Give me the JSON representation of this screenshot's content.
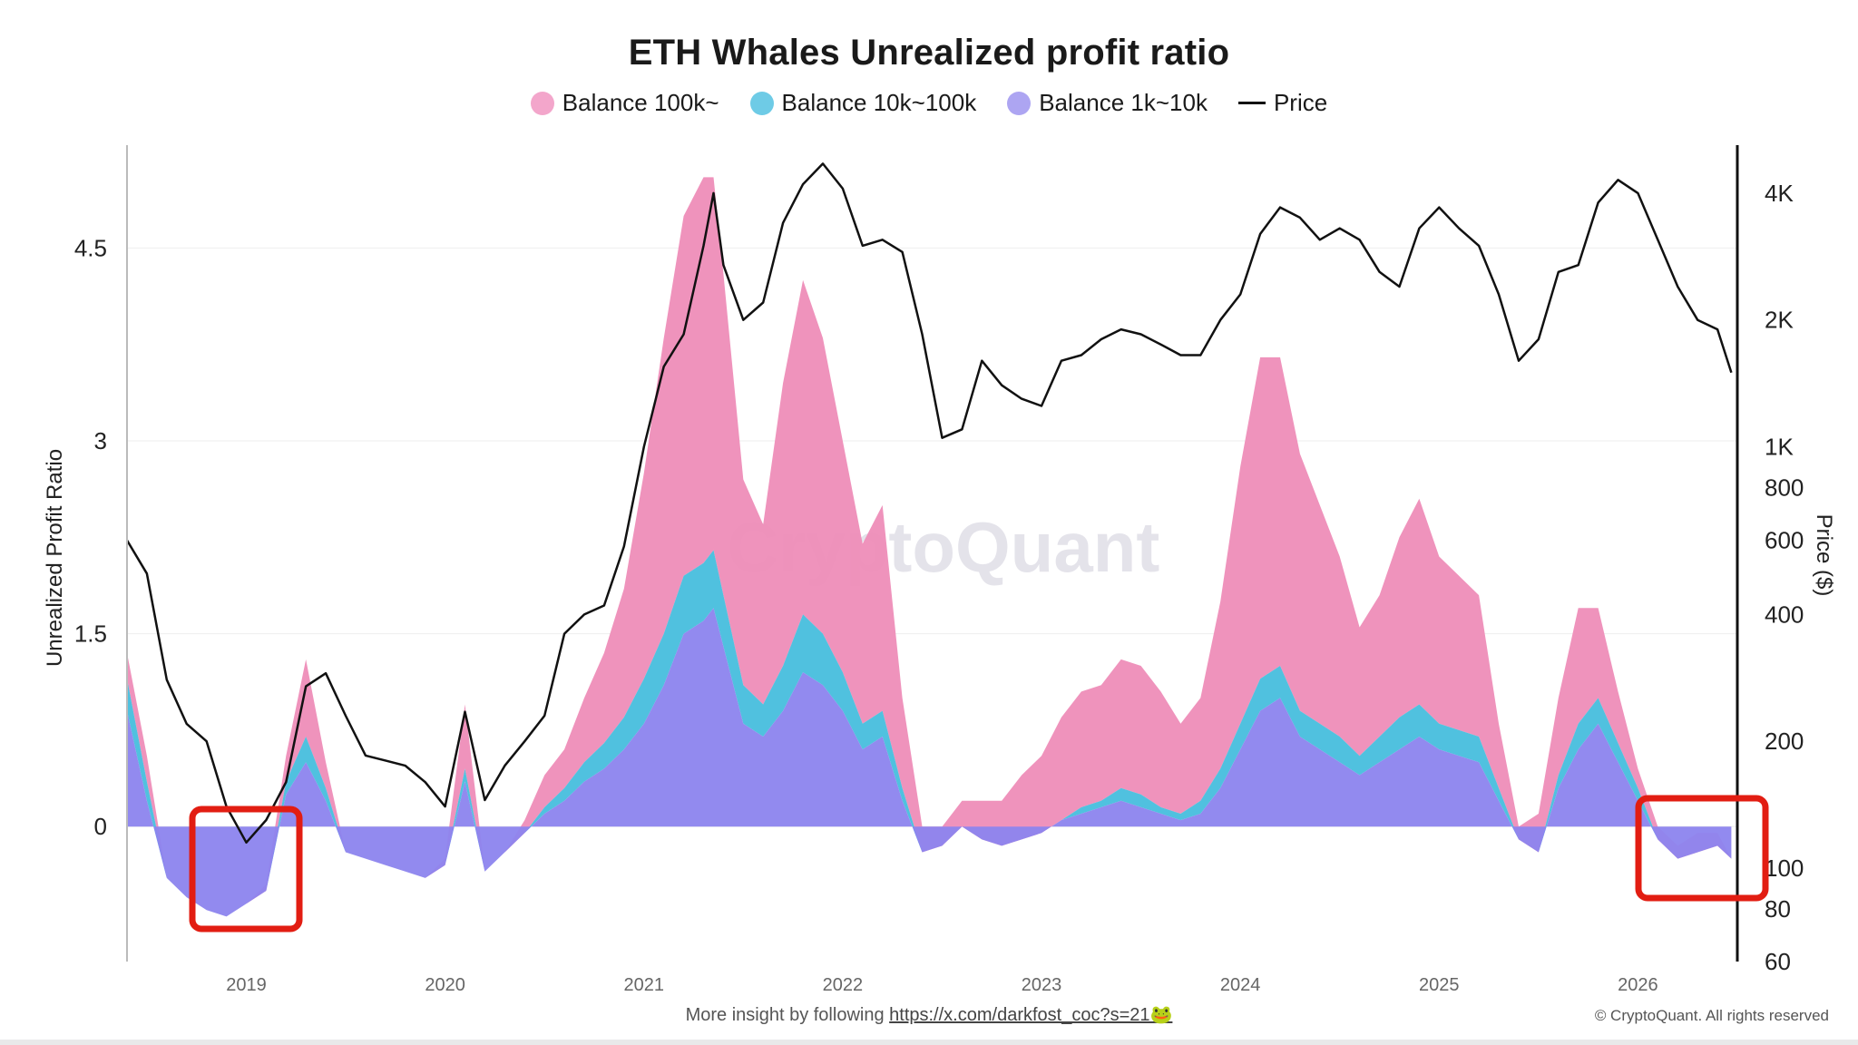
{
  "title": "ETH Whales Unrealized profit ratio",
  "legend": [
    {
      "label": "Balance 100k~",
      "color": "#F095BE",
      "kind": "dot"
    },
    {
      "label": "Balance 10k~100k",
      "color": "#5EC7E3",
      "kind": "dot"
    },
    {
      "label": "Balance 1k~10k",
      "color": "#A99CF2",
      "kind": "dot"
    },
    {
      "label": "Price",
      "color": "#111111",
      "kind": "line"
    }
  ],
  "watermark": "CryptoQuant",
  "footer": {
    "text": "More insight by following",
    "link": "https://x.com/darkfost_coc?s=21🐸",
    "copyright": "© CryptoQuant. All rights reserved"
  },
  "chart_data": {
    "type": "area",
    "title": "ETH Whales Unrealized profit ratio",
    "ylabel": "Unrealized Profit Ratio",
    "y2label": "Price ($)",
    "ylim": [
      -1.05,
      5.3
    ],
    "y_ticks": [
      0,
      1.5,
      3,
      4.5
    ],
    "y_tick_labels": [
      "0",
      "1.5",
      "3",
      "4.5"
    ],
    "y2_scale": "log",
    "y2lim": [
      60,
      5200
    ],
    "y2_ticks": [
      60,
      80,
      100,
      200,
      400,
      600,
      800,
      1000,
      2000,
      4000
    ],
    "y2_tick_labels": [
      "60",
      "80",
      "100",
      "200",
      "400",
      "600",
      "800",
      "1K",
      "2K",
      "4K"
    ],
    "x_range": [
      2018.4,
      2026.5
    ],
    "x_ticks": [
      2019,
      2020,
      2021,
      2022,
      2023,
      2024,
      2025,
      2026
    ],
    "x_tick_labels": [
      "2019",
      "2020",
      "2021",
      "2022",
      "2023",
      "2024",
      "2025",
      "2026"
    ],
    "x": [
      2018.4,
      2018.5,
      2018.6,
      2018.7,
      2018.8,
      2018.9,
      2019.0,
      2019.1,
      2019.2,
      2019.3,
      2019.4,
      2019.5,
      2019.6,
      2019.7,
      2019.8,
      2019.9,
      2020.0,
      2020.1,
      2020.2,
      2020.3,
      2020.4,
      2020.5,
      2020.6,
      2020.7,
      2020.8,
      2020.9,
      2021.0,
      2021.1,
      2021.2,
      2021.3,
      2021.35,
      2021.4,
      2021.5,
      2021.6,
      2021.7,
      2021.8,
      2021.9,
      2022.0,
      2022.1,
      2022.2,
      2022.3,
      2022.4,
      2022.5,
      2022.6,
      2022.7,
      2022.8,
      2022.9,
      2023.0,
      2023.1,
      2023.2,
      2023.3,
      2023.4,
      2023.5,
      2023.6,
      2023.7,
      2023.8,
      2023.9,
      2024.0,
      2024.1,
      2024.2,
      2024.3,
      2024.4,
      2024.5,
      2024.6,
      2024.7,
      2024.8,
      2024.9,
      2025.0,
      2025.1,
      2025.2,
      2025.3,
      2025.4,
      2025.5,
      2025.6,
      2025.7,
      2025.8,
      2025.9,
      2026.0,
      2026.1,
      2026.2,
      2026.3,
      2026.4,
      2026.47
    ],
    "series": [
      {
        "name": "Balance 1k~10k",
        "color": "#8C84EE",
        "values": [
          0.9,
          0.2,
          -0.4,
          -0.55,
          -0.65,
          -0.7,
          -0.6,
          -0.5,
          0.25,
          0.5,
          0.2,
          -0.2,
          -0.25,
          -0.3,
          -0.35,
          -0.4,
          -0.3,
          0.35,
          -0.35,
          -0.2,
          -0.05,
          0.1,
          0.2,
          0.35,
          0.45,
          0.6,
          0.8,
          1.1,
          1.5,
          1.6,
          1.7,
          1.4,
          0.8,
          0.7,
          0.9,
          1.2,
          1.1,
          0.9,
          0.6,
          0.7,
          0.2,
          -0.2,
          -0.15,
          0.0,
          -0.1,
          -0.15,
          -0.1,
          -0.05,
          0.05,
          0.1,
          0.15,
          0.2,
          0.15,
          0.1,
          0.05,
          0.1,
          0.3,
          0.6,
          0.9,
          1.0,
          0.7,
          0.6,
          0.5,
          0.4,
          0.5,
          0.6,
          0.7,
          0.6,
          0.55,
          0.5,
          0.2,
          -0.1,
          -0.2,
          0.3,
          0.6,
          0.8,
          0.5,
          0.2,
          -0.1,
          -0.25,
          -0.2,
          -0.15,
          -0.25
        ]
      },
      {
        "name": "Balance 10k~100k",
        "color": "#47BEDD",
        "values": [
          0.25,
          0.15,
          0.0,
          0.0,
          0.0,
          0.0,
          0.0,
          0.0,
          0.1,
          0.2,
          0.1,
          0.0,
          0.0,
          0.0,
          0.0,
          0.0,
          0.0,
          0.1,
          0.0,
          0.0,
          0.0,
          0.05,
          0.1,
          0.15,
          0.2,
          0.25,
          0.35,
          0.4,
          0.45,
          0.45,
          0.45,
          0.4,
          0.3,
          0.25,
          0.35,
          0.45,
          0.4,
          0.3,
          0.2,
          0.2,
          0.1,
          0.0,
          0.0,
          0.0,
          0.0,
          0.0,
          0.0,
          0.0,
          0.0,
          0.05,
          0.05,
          0.1,
          0.1,
          0.05,
          0.05,
          0.1,
          0.15,
          0.2,
          0.25,
          0.25,
          0.2,
          0.2,
          0.2,
          0.15,
          0.2,
          0.25,
          0.25,
          0.2,
          0.2,
          0.2,
          0.1,
          0.0,
          0.0,
          0.1,
          0.2,
          0.2,
          0.15,
          0.1,
          0.0,
          0.0,
          0.0,
          0.0,
          0.0
        ]
      },
      {
        "name": "Balance 100k~",
        "color": "#EE8DB8",
        "values": [
          0.2,
          0.2,
          0.0,
          0.0,
          0.0,
          0.0,
          0.0,
          0.05,
          0.2,
          0.6,
          0.2,
          0.0,
          0.0,
          0.0,
          0.0,
          0.0,
          0.05,
          0.5,
          0.0,
          0.0,
          0.1,
          0.25,
          0.3,
          0.5,
          0.7,
          1.0,
          1.6,
          2.3,
          2.8,
          3.0,
          2.9,
          2.5,
          1.6,
          1.4,
          2.2,
          2.6,
          2.3,
          1.8,
          1.4,
          1.6,
          0.7,
          0.2,
          0.15,
          0.2,
          0.3,
          0.35,
          0.5,
          0.6,
          0.8,
          0.9,
          0.9,
          1.0,
          1.0,
          0.9,
          0.7,
          0.8,
          1.3,
          2.0,
          2.5,
          2.4,
          2.0,
          1.7,
          1.4,
          1.0,
          1.1,
          1.4,
          1.6,
          1.3,
          1.2,
          1.1,
          0.5,
          0.1,
          0.3,
          0.6,
          0.9,
          0.7,
          0.4,
          0.15,
          0.1,
          0.1,
          0.15,
          0.1,
          0.0
        ]
      }
    ],
    "price": {
      "name": "Price",
      "color": "#111111",
      "values": [
        600,
        500,
        280,
        220,
        200,
        140,
        115,
        130,
        160,
        270,
        290,
        230,
        185,
        180,
        175,
        160,
        140,
        235,
        145,
        175,
        200,
        230,
        360,
        400,
        420,
        580,
        1000,
        1550,
        1850,
        3000,
        4000,
        2700,
        2000,
        2200,
        3400,
        4200,
        4700,
        4100,
        3000,
        3100,
        2900,
        1850,
        1050,
        1100,
        1600,
        1400,
        1300,
        1250,
        1600,
        1650,
        1800,
        1900,
        1850,
        1750,
        1650,
        1650,
        2000,
        2300,
        3200,
        3700,
        3500,
        3100,
        3300,
        3100,
        2600,
        2400,
        3300,
        3700,
        3300,
        3000,
        2300,
        1600,
        1800,
        2600,
        2700,
        3800,
        4300,
        4000,
        3100,
        2400,
        2000,
        1900,
        1500
      ]
    }
  }
}
